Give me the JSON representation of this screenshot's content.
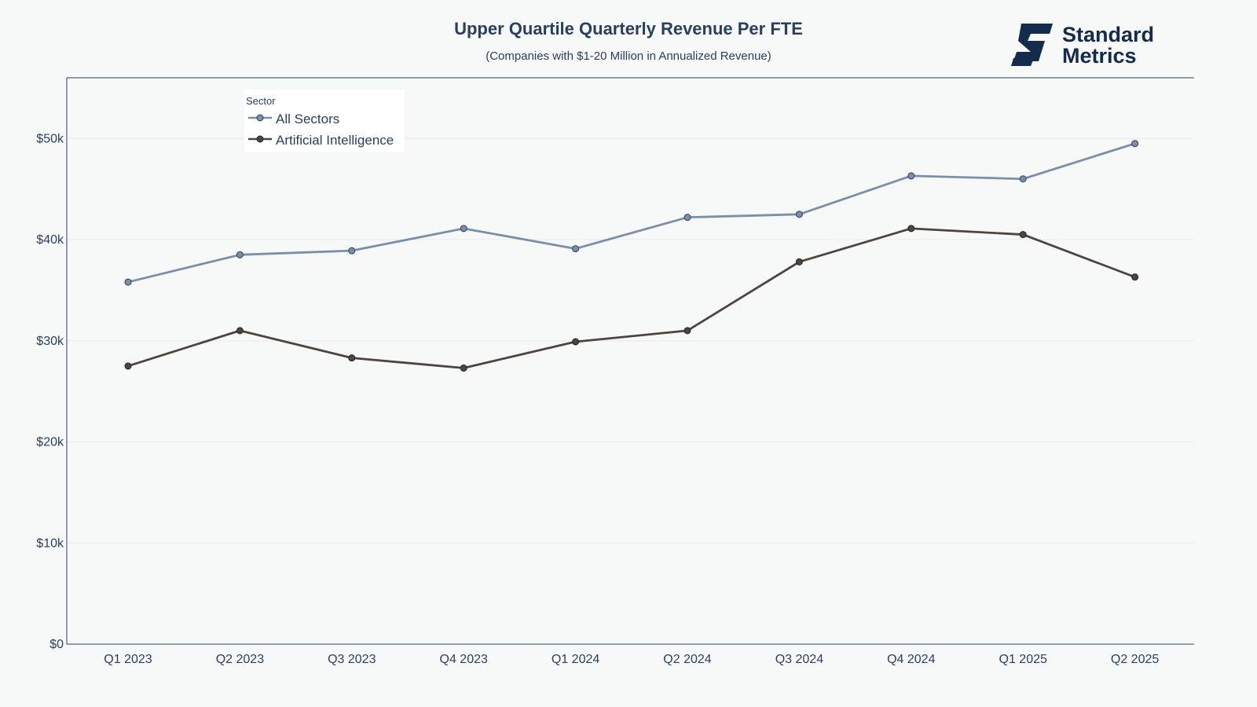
{
  "chart_data": {
    "type": "line",
    "title": "Upper Quartile Quarterly Revenue Per FTE",
    "subtitle": "(Companies with $1-20 Million in Annualized Revenue)",
    "categories": [
      "Q1 2023",
      "Q2 2023",
      "Q3 2023",
      "Q4 2023",
      "Q1 2024",
      "Q2 2024",
      "Q3 2024",
      "Q4 2024",
      "Q1 2025",
      "Q2 2025"
    ],
    "yticks": [
      0,
      10000,
      20000,
      30000,
      40000,
      50000
    ],
    "ytick_labels": [
      "$0",
      "$10k",
      "$20k",
      "$30k",
      "$40k",
      "$50k"
    ],
    "ylim": [
      0,
      56000
    ],
    "grid": true,
    "legend": {
      "title": "Sector",
      "placement": "top-left"
    },
    "series": [
      {
        "name": "All Sectors",
        "color": "#7c8fa8",
        "values": [
          35800,
          38500,
          38900,
          41100,
          39100,
          42200,
          42500,
          46300,
          46000,
          49500
        ]
      },
      {
        "name": "Artificial Intelligence",
        "color": "#4e4540",
        "values": [
          27500,
          31000,
          28300,
          27300,
          29900,
          31000,
          37800,
          41100,
          40500,
          36300
        ]
      }
    ]
  },
  "logo": {
    "line1": "Standard",
    "line2": "Metrics",
    "color": "#152b4b"
  }
}
